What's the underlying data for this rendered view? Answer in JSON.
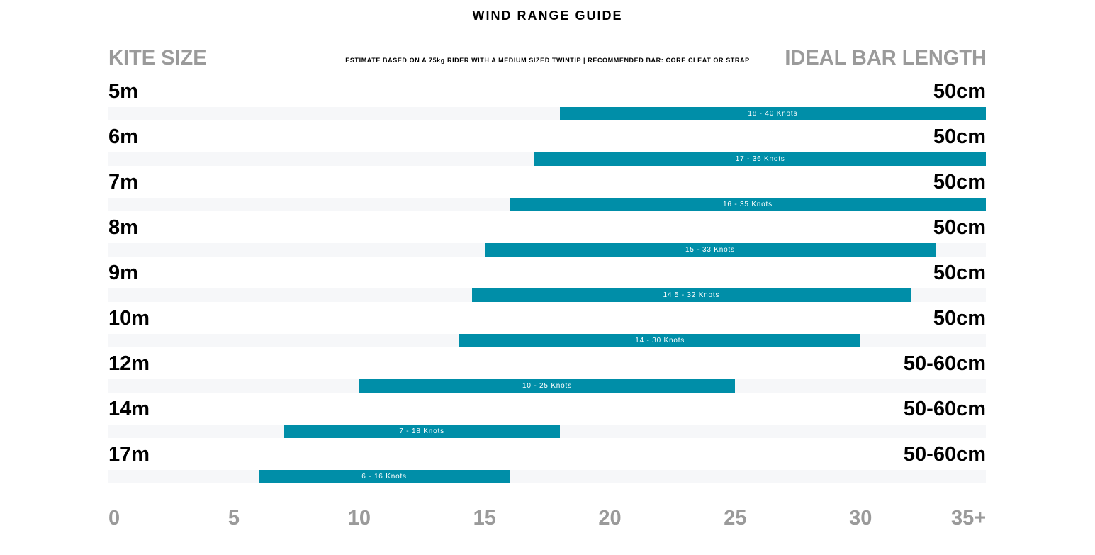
{
  "title": "WIND RANGE GUIDE",
  "header": {
    "left": "KITE SIZE",
    "note": "ESTIMATE BASED ON A 75kg RIDER WITH A MEDIUM SIZED TWINTIP  |  RECOMMENDED BAR: CORE CLEAT OR STRAP",
    "right": "IDEAL BAR LENGTH"
  },
  "colors": {
    "bar": "#008ea8",
    "track": "#f6f7f9",
    "header_gray": "#9a9a9a"
  },
  "chart_data": {
    "type": "bar",
    "orientation": "horizontal-range",
    "unit": "Knots",
    "xlim": [
      0,
      35
    ],
    "ticks": [
      "0",
      "5",
      "10",
      "15",
      "20",
      "25",
      "30",
      "35+"
    ],
    "tick_values": [
      0,
      5,
      10,
      15,
      20,
      25,
      30,
      35
    ],
    "rows": [
      {
        "kite": "5m",
        "bar_length": "50cm",
        "min": 18,
        "max": 40,
        "label": "18 - 40 Knots"
      },
      {
        "kite": "6m",
        "bar_length": "50cm",
        "min": 17,
        "max": 36,
        "label": "17 - 36 Knots"
      },
      {
        "kite": "7m",
        "bar_length": "50cm",
        "min": 16,
        "max": 35,
        "label": "16 - 35 Knots"
      },
      {
        "kite": "8m",
        "bar_length": "50cm",
        "min": 15,
        "max": 33,
        "label": "15 - 33 Knots"
      },
      {
        "kite": "9m",
        "bar_length": "50cm",
        "min": 14.5,
        "max": 32,
        "label": "14.5 - 32 Knots"
      },
      {
        "kite": "10m",
        "bar_length": "50cm",
        "min": 14,
        "max": 30,
        "label": "14 - 30 Knots"
      },
      {
        "kite": "12m",
        "bar_length": "50-60cm",
        "min": 10,
        "max": 25,
        "label": "10 - 25 Knots"
      },
      {
        "kite": "14m",
        "bar_length": "50-60cm",
        "min": 7,
        "max": 18,
        "label": "7 - 18 Knots"
      },
      {
        "kite": "17m",
        "bar_length": "50-60cm",
        "min": 6,
        "max": 16,
        "label": "6 - 16 Knots"
      }
    ]
  }
}
